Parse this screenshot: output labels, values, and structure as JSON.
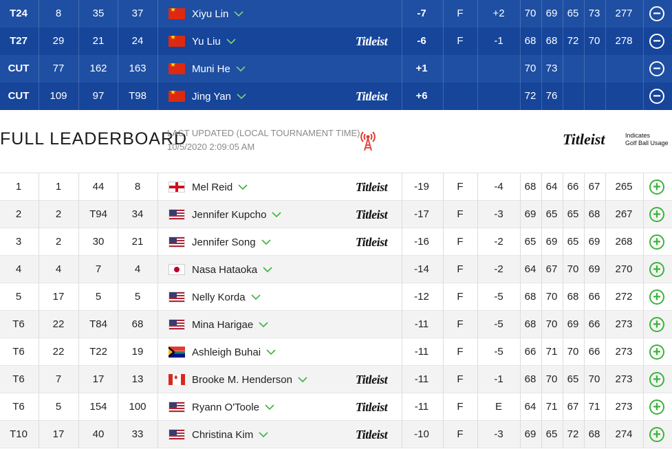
{
  "favorites": [
    {
      "pos": "T24",
      "r1": "8",
      "r2": "35",
      "r3": "37",
      "flag": "cn-flag-icon",
      "name": "Xiyu Lin",
      "titleist": false,
      "par": "-7",
      "thru": "F",
      "today": "+2",
      "rounds": [
        "70",
        "69",
        "65",
        "73"
      ],
      "total": "277",
      "action": "collapse"
    },
    {
      "pos": "T27",
      "r1": "29",
      "r2": "21",
      "r3": "24",
      "flag": "cn-flag-icon",
      "name": "Yu Liu",
      "titleist": true,
      "par": "-6",
      "thru": "F",
      "today": "-1",
      "rounds": [
        "68",
        "68",
        "72",
        "70"
      ],
      "total": "278",
      "action": "collapse"
    },
    {
      "pos": "CUT",
      "r1": "77",
      "r2": "162",
      "r3": "163",
      "flag": "cn-flag-icon",
      "name": "Muni He",
      "titleist": false,
      "par": "+1",
      "thru": "",
      "today": "",
      "rounds": [
        "70",
        "73",
        "",
        ""
      ],
      "total": "",
      "action": "collapse"
    },
    {
      "pos": "CUT",
      "r1": "109",
      "r2": "97",
      "r3": "T98",
      "flag": "cn-flag-icon",
      "name": "Jing Yan",
      "titleist": true,
      "par": "+6",
      "thru": "",
      "today": "",
      "rounds": [
        "72",
        "76",
        "",
        ""
      ],
      "total": "",
      "action": "collapse"
    }
  ],
  "header": {
    "title": "FULL LEADERBOARD",
    "updated_label": "LAST UPDATED (LOCAL TOURNAMENT TIME)",
    "updated_time": "10/5/2020 2:09:05 AM",
    "titleist_logo": "Titleist",
    "titleist_note_1": "Indicates",
    "titleist_note_2": "Golf Ball Usage"
  },
  "titleist_mark": "Titleist",
  "leaderboard": [
    {
      "pos": "1",
      "r1": "1",
      "r2": "44",
      "r3": "8",
      "flag": "en-flag-icon",
      "name": "Mel Reid",
      "titleist": true,
      "par": "-19",
      "thru": "F",
      "today": "-4",
      "rounds": [
        "68",
        "64",
        "66",
        "67"
      ],
      "total": "265"
    },
    {
      "pos": "2",
      "r1": "2",
      "r2": "T94",
      "r3": "34",
      "flag": "us-flag-icon",
      "name": "Jennifer Kupcho",
      "titleist": true,
      "par": "-17",
      "thru": "F",
      "today": "-3",
      "rounds": [
        "69",
        "65",
        "65",
        "68"
      ],
      "total": "267"
    },
    {
      "pos": "3",
      "r1": "2",
      "r2": "30",
      "r3": "21",
      "flag": "us-flag-icon",
      "name": "Jennifer Song",
      "titleist": true,
      "par": "-16",
      "thru": "F",
      "today": "-2",
      "rounds": [
        "65",
        "69",
        "65",
        "69"
      ],
      "total": "268"
    },
    {
      "pos": "4",
      "r1": "4",
      "r2": "7",
      "r3": "4",
      "flag": "jp-flag-icon",
      "name": "Nasa Hataoka",
      "titleist": false,
      "par": "-14",
      "thru": "F",
      "today": "-2",
      "rounds": [
        "64",
        "67",
        "70",
        "69"
      ],
      "total": "270"
    },
    {
      "pos": "5",
      "r1": "17",
      "r2": "5",
      "r3": "5",
      "flag": "us-flag-icon",
      "name": "Nelly Korda",
      "titleist": false,
      "par": "-12",
      "thru": "F",
      "today": "-5",
      "rounds": [
        "68",
        "70",
        "68",
        "66"
      ],
      "total": "272"
    },
    {
      "pos": "T6",
      "r1": "22",
      "r2": "T84",
      "r3": "68",
      "flag": "us-flag-icon",
      "name": "Mina Harigae",
      "titleist": false,
      "par": "-11",
      "thru": "F",
      "today": "-5",
      "rounds": [
        "68",
        "70",
        "69",
        "66"
      ],
      "total": "273"
    },
    {
      "pos": "T6",
      "r1": "22",
      "r2": "T22",
      "r3": "19",
      "flag": "za-flag-icon",
      "name": "Ashleigh Buhai",
      "titleist": false,
      "par": "-11",
      "thru": "F",
      "today": "-5",
      "rounds": [
        "66",
        "71",
        "70",
        "66"
      ],
      "total": "273"
    },
    {
      "pos": "T6",
      "r1": "7",
      "r2": "17",
      "r3": "13",
      "flag": "ca-flag-icon",
      "name": "Brooke M. Henderson",
      "titleist": true,
      "par": "-11",
      "thru": "F",
      "today": "-1",
      "rounds": [
        "68",
        "70",
        "65",
        "70"
      ],
      "total": "273"
    },
    {
      "pos": "T6",
      "r1": "5",
      "r2": "154",
      "r3": "100",
      "flag": "us-flag-icon",
      "name": "Ryann O'Toole",
      "titleist": true,
      "par": "-11",
      "thru": "F",
      "today": "E",
      "rounds": [
        "64",
        "71",
        "67",
        "71"
      ],
      "total": "273"
    },
    {
      "pos": "T10",
      "r1": "17",
      "r2": "40",
      "r3": "33",
      "flag": "us-flag-icon",
      "name": "Christina Kim",
      "titleist": true,
      "par": "-10",
      "thru": "F",
      "today": "-3",
      "rounds": [
        "69",
        "65",
        "72",
        "68"
      ],
      "total": "274"
    }
  ],
  "colors": {
    "fav_bg": "#1f4fa2",
    "add_green": "#3bb33b",
    "antenna_red": "#e03a2f"
  }
}
